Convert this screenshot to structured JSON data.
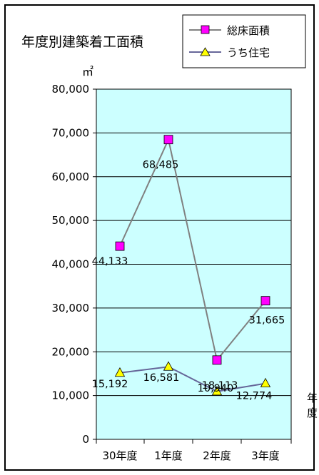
{
  "chart_data": {
    "type": "line",
    "title": "年度別建築着工面積",
    "ylabel": "㎡",
    "xlabel": "年度",
    "categories": [
      "30年度",
      "1年度",
      "2年度",
      "3年度"
    ],
    "ylim": [
      0,
      80000
    ],
    "yticks": [
      0,
      10000,
      20000,
      30000,
      40000,
      50000,
      60000,
      70000,
      80000
    ],
    "ytick_labels": [
      "0",
      "10,000",
      "20,000",
      "30,000",
      "40,000",
      "50,000",
      "60,000",
      "70,000",
      "80,000"
    ],
    "grid": true,
    "legend_position": "top-right",
    "plot_background": "#ccffff",
    "series": [
      {
        "name": "総床面積",
        "values": [
          44133,
          68485,
          18113,
          31665
        ],
        "labels": [
          "44,133",
          "68,485",
          "18,113",
          "31,665"
        ],
        "line_color": "#808080",
        "marker": "square",
        "marker_color": "#ff00ff"
      },
      {
        "name": "うち住宅",
        "values": [
          15192,
          16581,
          10940,
          12774
        ],
        "labels": [
          "15,192",
          "16,581",
          "10,940",
          "12,774"
        ],
        "line_color": "#666699",
        "marker": "triangle",
        "marker_color": "#ffff00"
      }
    ]
  }
}
